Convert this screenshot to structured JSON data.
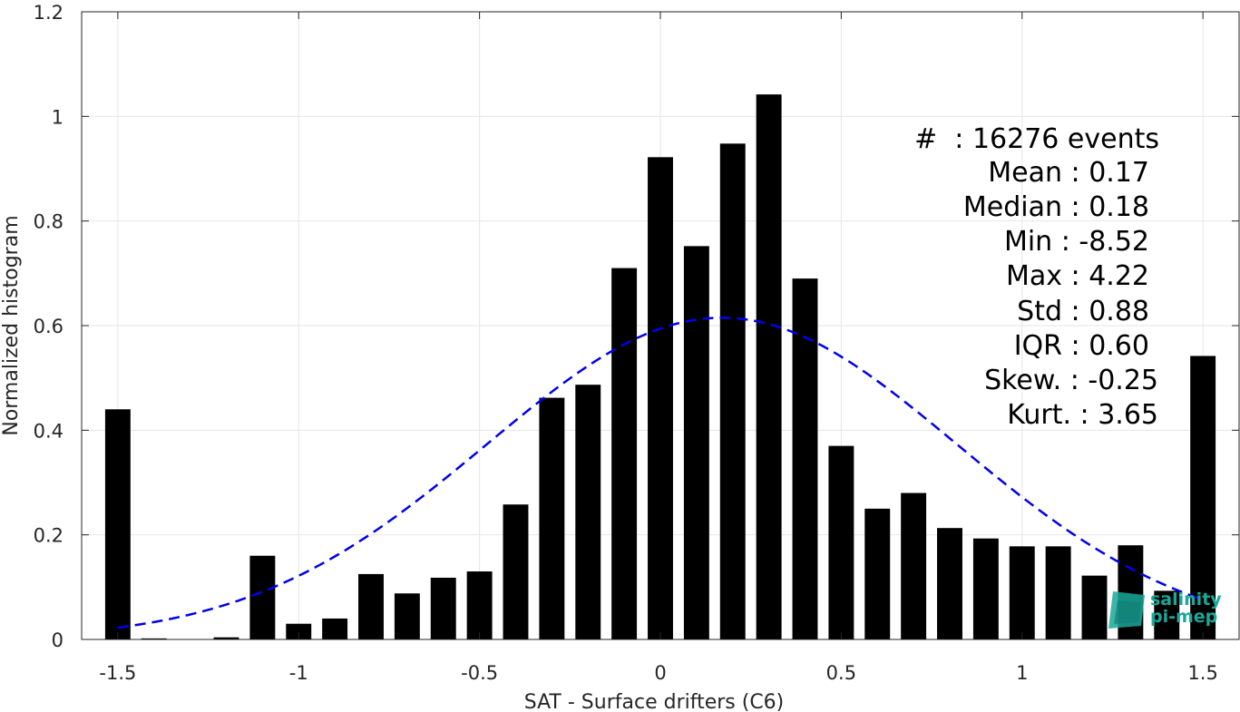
{
  "chart_data": {
    "type": "bar",
    "xlabel": "SAT - Surface drifters (C6)",
    "ylabel": "Normalized histogram",
    "xlim": [
      -1.6,
      1.6
    ],
    "ylim": [
      0,
      1.2
    ],
    "xticks": [
      -1.5,
      -1,
      -0.5,
      0,
      0.5,
      1,
      1.5
    ],
    "xtick_labels": [
      "-1.5",
      "-1",
      "-0.5",
      "0",
      "0.5",
      "1",
      "1.5"
    ],
    "yticks": [
      0,
      0.2,
      0.4,
      0.6,
      0.8,
      1.0,
      1.2
    ],
    "ytick_labels": [
      "0",
      "0.2",
      "0.4",
      "0.6",
      "0.8",
      "1",
      "1.2"
    ],
    "grid": true,
    "bar_color": "#000000",
    "bars": {
      "x": [
        -1.5,
        -1.4,
        -1.3,
        -1.2,
        -1.1,
        -1.0,
        -0.9,
        -0.8,
        -0.7,
        -0.6,
        -0.5,
        -0.4,
        -0.3,
        -0.2,
        -0.1,
        0.0,
        0.1,
        0.2,
        0.3,
        0.4,
        0.5,
        0.6,
        0.7,
        0.8,
        0.9,
        1.0,
        1.1,
        1.2,
        1.3,
        1.4,
        1.5
      ],
      "values": [
        0.44,
        0.002,
        0.0,
        0.004,
        0.16,
        0.03,
        0.04,
        0.125,
        0.088,
        0.118,
        0.13,
        0.258,
        0.462,
        0.487,
        0.71,
        0.922,
        0.752,
        0.948,
        1.042,
        0.69,
        0.37,
        0.25,
        0.28,
        0.213,
        0.193,
        0.178,
        0.178,
        0.122,
        0.18,
        0.093,
        0.542
      ]
    },
    "fit_curve": {
      "style": "dashed",
      "color": "#0000ee",
      "mean": 0.17,
      "std": 0.65,
      "peak": 0.615,
      "x_range": [
        -1.5,
        1.5
      ]
    },
    "annotations": [
      {
        "text": "#  : 16276 events"
      },
      {
        "text": "Mean : 0.17"
      },
      {
        "text": "Median : 0.18"
      },
      {
        "text": "Min : -8.52"
      },
      {
        "text": "Max : 4.22"
      },
      {
        "text": "Std : 0.88"
      },
      {
        "text": "IQR : 0.60"
      },
      {
        "text": "Skew. : -0.25"
      },
      {
        "text": "Kurt. : 3.65"
      }
    ]
  },
  "logo": {
    "line1": "salinity",
    "line2": "pi-mep",
    "color": "#1aa89a"
  }
}
